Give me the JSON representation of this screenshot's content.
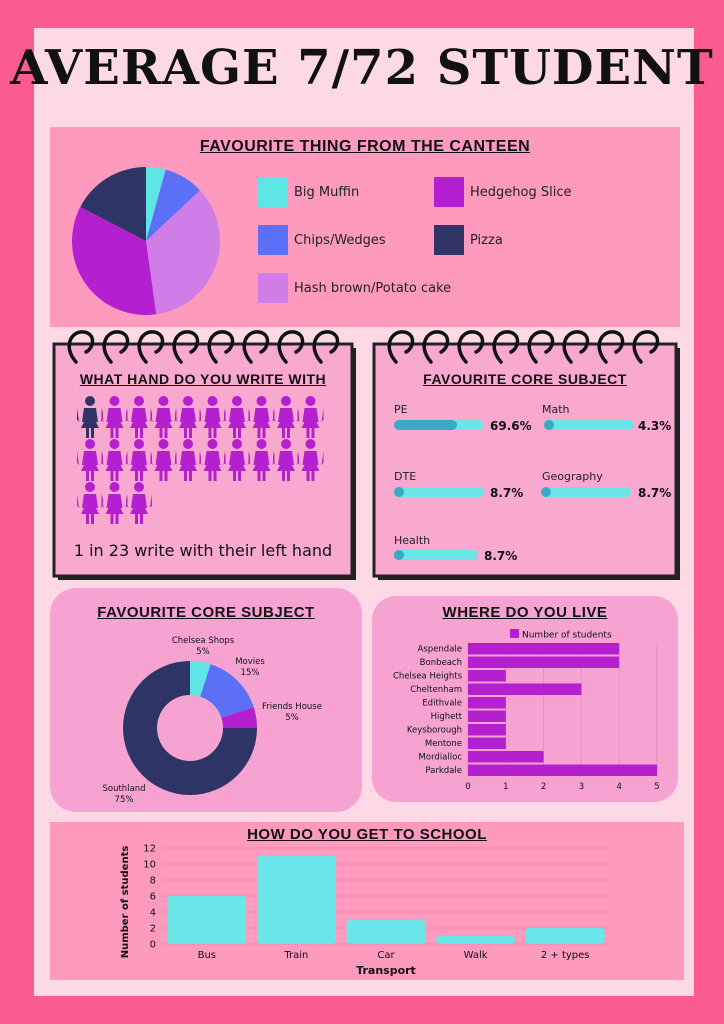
{
  "title": "AVERAGE 7/72 STUDENT",
  "canteen": {
    "title": "FAVOURITE THING FROM THE CANTEEN",
    "legend": [
      {
        "label": "Big Muffin",
        "color": "#5ee6e6"
      },
      {
        "label": "Hedgehog Slice",
        "color": "#b41fcf"
      },
      {
        "label": "Chips/Wedges",
        "color": "#5b6ff7"
      },
      {
        "label": "Pizza",
        "color": "#2e3566"
      },
      {
        "label": "Hash brown/Potato cake",
        "color": "#d07de8"
      }
    ]
  },
  "hand": {
    "title": "WHAT HAND DO YOU WRITE WITH",
    "caption": "1 in 23 write with their left hand",
    "left_color": "#2e3566",
    "right_color": "#b41fcf"
  },
  "core_bars": {
    "title": "FAVOURITE CORE SUBJECT",
    "items": [
      {
        "label": "PE",
        "value": "69.6%"
      },
      {
        "label": "Math",
        "value": "4.3%"
      },
      {
        "label": "DTE",
        "value": "8.7%"
      },
      {
        "label": "Geography",
        "value": "8.7%"
      },
      {
        "label": "Health",
        "value": "8.7%"
      }
    ]
  },
  "donut": {
    "title": "FAVOURITE CORE SUBJECT",
    "labels": [
      {
        "name": "Chelsea Shops",
        "pct": "5%"
      },
      {
        "name": "Movies",
        "pct": "15%"
      },
      {
        "name": "Friends House",
        "pct": "5%"
      },
      {
        "name": "Southland",
        "pct": "75%"
      }
    ]
  },
  "live": {
    "title": "WHERE DO YOU LIVE",
    "legend": "Number of students"
  },
  "transport": {
    "title": "HOW DO YOU GET TO SCHOOL",
    "xlabel": "Transport",
    "ylabel": "Number of students"
  },
  "chart_data": [
    {
      "type": "pie",
      "title": "FAVOURITE THING FROM THE CANTEEN",
      "categories": [
        "Big Muffin",
        "Chips/Wedges",
        "Hash brown/Potato cake",
        "Hedgehog Slice",
        "Pizza"
      ],
      "values": [
        4.3,
        8.7,
        34.8,
        34.8,
        17.4
      ],
      "colors": [
        "#5ee6e6",
        "#5b6ff7",
        "#d07de8",
        "#b41fcf",
        "#2e3566"
      ]
    },
    {
      "type": "bar",
      "title": "WHAT HAND DO YOU WRITE WITH",
      "categories": [
        "Left",
        "Right"
      ],
      "values": [
        1,
        22
      ]
    },
    {
      "type": "bar",
      "title": "FAVOURITE CORE SUBJECT",
      "categories": [
        "PE",
        "Math",
        "DTE",
        "Geography",
        "Health"
      ],
      "values": [
        69.6,
        4.3,
        8.7,
        8.7,
        8.7
      ]
    },
    {
      "type": "pie",
      "title": "FAVOURITE CORE SUBJECT",
      "categories": [
        "Chelsea Shops",
        "Movies",
        "Friends House",
        "Southland"
      ],
      "values": [
        5,
        15,
        5,
        75
      ],
      "colors": [
        "#5ee6e6",
        "#5b6ff7",
        "#b41fcf",
        "#2e3566"
      ]
    },
    {
      "type": "bar",
      "title": "WHERE DO YOU LIVE",
      "categories": [
        "Aspendale",
        "Bonbeach",
        "Chelsea Heights",
        "Cheltenham",
        "Edithvale",
        "Highett",
        "Keysborough",
        "Mentone",
        "Mordialloc",
        "Parkdale"
      ],
      "series": [
        {
          "name": "Number of students",
          "values": [
            4,
            4,
            1,
            3,
            1,
            1,
            1,
            1,
            2,
            5
          ]
        }
      ],
      "xlim": [
        0,
        5
      ],
      "ticks": [
        0,
        1,
        2,
        3,
        4,
        5
      ],
      "color": "#b41fcf"
    },
    {
      "type": "bar",
      "title": "HOW DO YOU GET TO SCHOOL",
      "categories": [
        "Bus",
        "Train",
        "Car",
        "Walk",
        "2 + types"
      ],
      "values": [
        6,
        11,
        3,
        1,
        2
      ],
      "xlabel": "Transport",
      "ylabel": "Number of students",
      "ylim": [
        0,
        12
      ],
      "ticks": [
        0,
        2,
        4,
        6,
        8,
        10,
        12
      ],
      "color": "#6ae5e8"
    }
  ]
}
